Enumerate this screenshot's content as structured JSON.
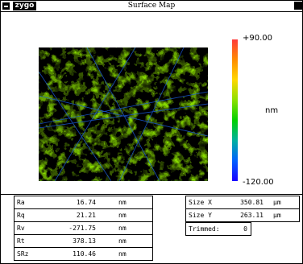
{
  "window": {
    "title": "Surface Map",
    "logo": "zygo"
  },
  "icons": {
    "system_menu": "system-menu-icon",
    "maximize": "maximize-icon"
  },
  "colorbar": {
    "max_label": "+90.00",
    "min_label": "-120.00",
    "unit": "nm",
    "colors": [
      "#ff3a3a",
      "#ff8c00",
      "#ffd700",
      "#8be000",
      "#00d000",
      "#00b0a0",
      "#0060ff",
      "#1a00ff"
    ]
  },
  "stats_left": [
    {
      "name": "Ra",
      "value": "16.74",
      "unit": "nm"
    },
    {
      "name": "Rq",
      "value": "21.21",
      "unit": "nm"
    },
    {
      "name": "Rv",
      "value": "-271.75",
      "unit": "nm"
    },
    {
      "name": "Rt",
      "value": "378.13",
      "unit": "nm"
    },
    {
      "name": "SRz",
      "value": "110.46",
      "unit": "nm"
    }
  ],
  "stats_right": [
    {
      "name": "Size X",
      "value": "350.81",
      "unit": "μm"
    },
    {
      "name": "Size Y",
      "value": "263.11",
      "unit": "μm"
    }
  ],
  "trimmed": {
    "name": "Trimmed:",
    "value": "0"
  }
}
